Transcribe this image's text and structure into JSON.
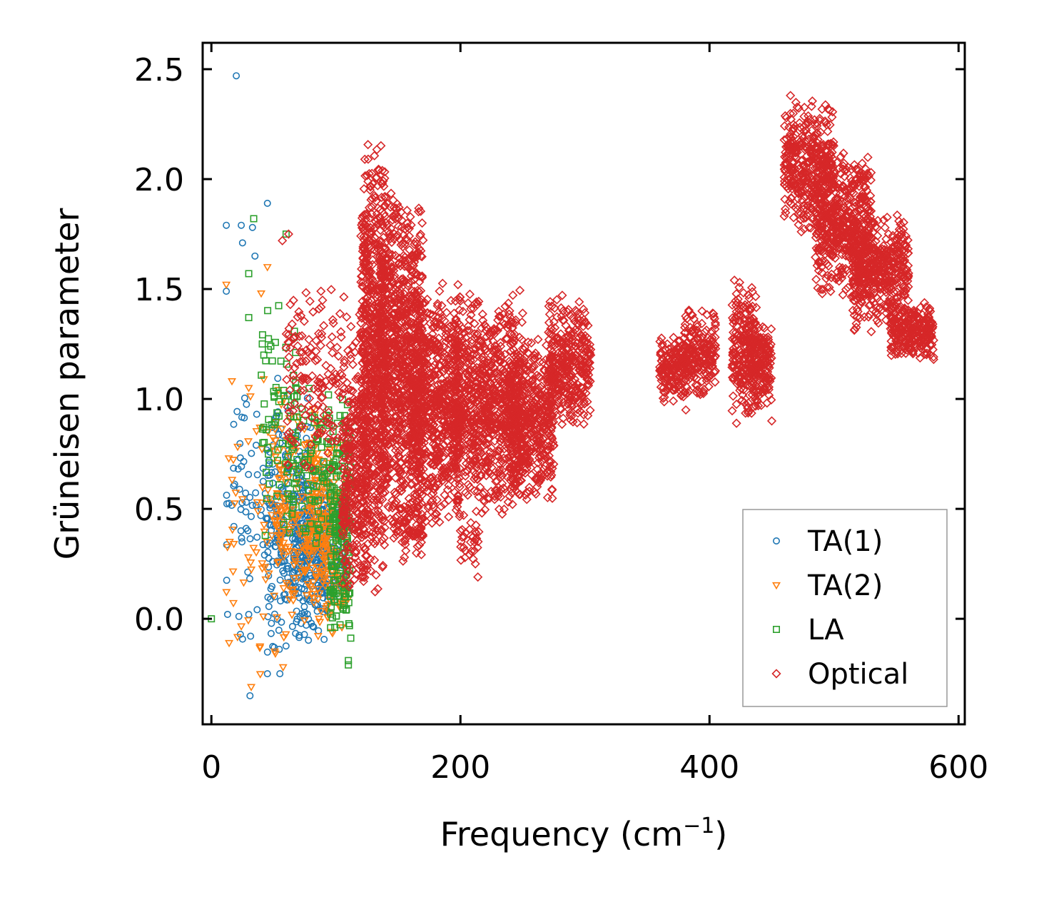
{
  "chart_data": {
    "type": "scatter",
    "title": "",
    "xlabel": "Frequency (cm",
    "xlabel_sup": "−1",
    "xlabel_close": ")",
    "ylabel": "Grüneisen parameter",
    "xlim": [
      -7,
      605
    ],
    "ylim": [
      -0.48,
      2.62
    ],
    "xticks": [
      0,
      200,
      400,
      600
    ],
    "xtick_labels": [
      "0",
      "200",
      "400",
      "600"
    ],
    "yticks": [
      0.0,
      0.5,
      1.0,
      1.5,
      2.0,
      2.5
    ],
    "ytick_labels": [
      "0.0",
      "0.5",
      "1.0",
      "1.5",
      "2.0",
      "2.5"
    ],
    "legend_position": "lower-right",
    "series": [
      {
        "name": "TA(1)",
        "marker": "circle",
        "color": "#1f77b4",
        "outliers": [
          [
            20,
            2.47
          ],
          [
            12,
            1.79
          ],
          [
            24,
            1.79
          ],
          [
            45,
            1.89
          ],
          [
            33,
            1.78
          ],
          [
            12,
            1.49
          ],
          [
            35,
            1.65
          ],
          [
            25,
            1.71
          ],
          [
            30,
            0.02
          ],
          [
            13,
            0.02
          ],
          [
            31,
            -0.35
          ],
          [
            45,
            -0.25
          ],
          [
            55,
            -0.25
          ]
        ],
        "clusters": [
          {
            "x": [
              12,
              62
            ],
            "y": [
              -0.25,
              1.25
            ],
            "n": 110
          },
          {
            "x": [
              45,
              80
            ],
            "y": [
              -0.2,
              1.05
            ],
            "n": 160
          },
          {
            "x": [
              65,
              95
            ],
            "y": [
              -0.12,
              0.75
            ],
            "n": 240
          },
          {
            "x": [
              85,
              110
            ],
            "y": [
              0.05,
              0.55
            ],
            "n": 90
          }
        ]
      },
      {
        "name": "TA(2)",
        "marker": "triangle-down",
        "color": "#ff7f0e",
        "outliers": [
          [
            12,
            1.52
          ],
          [
            45,
            1.6
          ],
          [
            32,
            -0.31
          ],
          [
            40,
            1.48
          ],
          [
            14,
            0.73
          ],
          [
            30,
            1.05
          ]
        ],
        "clusters": [
          {
            "x": [
              12,
              65
            ],
            "y": [
              -0.3,
              1.2
            ],
            "n": 80
          },
          {
            "x": [
              50,
              95
            ],
            "y": [
              -0.12,
              1.0
            ],
            "n": 200
          },
          {
            "x": [
              75,
              110
            ],
            "y": [
              -0.12,
              0.85
            ],
            "n": 180
          }
        ]
      },
      {
        "name": "LA",
        "marker": "square",
        "color": "#2ca02c",
        "outliers": [
          [
            0,
            0.0
          ],
          [
            34,
            1.82
          ],
          [
            30,
            1.57
          ],
          [
            30,
            1.37
          ],
          [
            60,
            1.75
          ],
          [
            110,
            -0.21
          ],
          [
            110,
            -0.19
          ]
        ],
        "clusters": [
          {
            "x": [
              40,
              70
            ],
            "y": [
              0.3,
              1.5
            ],
            "n": 70
          },
          {
            "x": [
              60,
              95
            ],
            "y": [
              0.3,
              1.1
            ],
            "n": 90
          },
          {
            "x": [
              95,
              112
            ],
            "y": [
              -0.15,
              1.05
            ],
            "n": 200
          }
        ]
      },
      {
        "name": "Optical",
        "marker": "diamond",
        "color": "#d62728",
        "outliers": [
          [
            62,
            1.75
          ],
          [
            57,
            1.72
          ],
          [
            88,
            1.49
          ],
          [
            198,
            1.52
          ],
          [
            214,
            0.19
          ],
          [
            212,
            0.25
          ],
          [
            200,
            0.4
          ],
          [
            180,
            0.6
          ],
          [
            155,
            0.28
          ],
          [
            420,
            1.54
          ],
          [
            450,
            0.9
          ],
          [
            445,
            1.1
          ],
          [
            394,
            1.4
          ],
          [
            381,
            0.95
          ],
          [
            465,
            2.38
          ],
          [
            490,
            1.6
          ],
          [
            580,
            1.18
          ]
        ],
        "clusters": [
          {
            "x": [
              60,
              125
            ],
            "y": [
              0.6,
              1.55
            ],
            "n": 220
          },
          {
            "x": [
              105,
              125
            ],
            "y": [
              0.05,
              1.1
            ],
            "n": 260
          },
          {
            "x": [
              120,
              140
            ],
            "y": [
              0.1,
              2.2
            ],
            "n": 700
          },
          {
            "x": [
              135,
              170
            ],
            "y": [
              0.35,
              2.0
            ],
            "n": 900
          },
          {
            "x": [
              160,
              200
            ],
            "y": [
              0.4,
              1.55
            ],
            "n": 700
          },
          {
            "x": [
              195,
              250
            ],
            "y": [
              0.45,
              1.5
            ],
            "n": 900
          },
          {
            "x": [
              240,
              275
            ],
            "y": [
              0.5,
              1.3
            ],
            "n": 450
          },
          {
            "x": [
              270,
              305
            ],
            "y": [
              0.85,
              1.48
            ],
            "n": 350
          },
          {
            "x": [
              145,
              170
            ],
            "y": [
              0.25,
              0.6
            ],
            "n": 90
          },
          {
            "x": [
              200,
              215
            ],
            "y": [
              0.2,
              0.5
            ],
            "n": 30
          },
          {
            "x": [
              360,
              383
            ],
            "y": [
              0.97,
              1.3
            ],
            "n": 180
          },
          {
            "x": [
              380,
              405
            ],
            "y": [
              1.0,
              1.43
            ],
            "n": 180
          },
          {
            "x": [
              418,
              438
            ],
            "y": [
              0.88,
              1.55
            ],
            "n": 220
          },
          {
            "x": [
              432,
              450
            ],
            "y": [
              0.95,
              1.38
            ],
            "n": 160
          },
          {
            "x": [
              460,
              500
            ],
            "y": [
              1.75,
              2.38
            ],
            "n": 400
          },
          {
            "x": [
              485,
              530
            ],
            "y": [
              1.45,
              2.15
            ],
            "n": 500
          },
          {
            "x": [
              515,
              560
            ],
            "y": [
              1.3,
              1.85
            ],
            "n": 450
          },
          {
            "x": [
              545,
              580
            ],
            "y": [
              1.17,
              1.45
            ],
            "n": 250
          }
        ]
      }
    ]
  }
}
